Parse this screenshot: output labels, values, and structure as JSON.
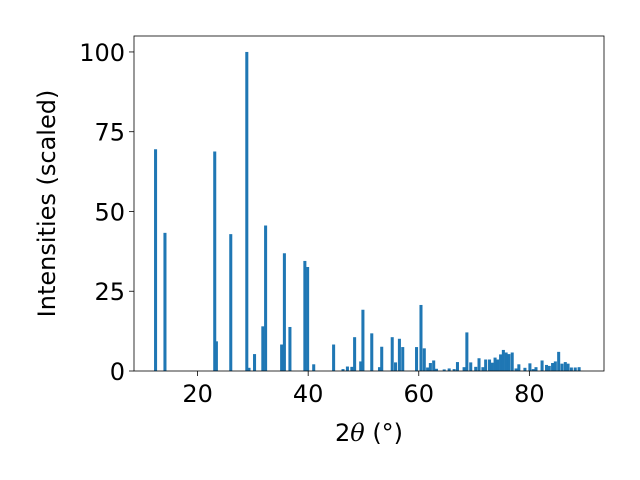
{
  "chart_data": {
    "type": "bar",
    "xlabel_parts": {
      "prefix": "2",
      "theta": "θ",
      "unit": " (°)"
    },
    "ylabel": "Intensities (scaled)",
    "xlim": [
      8.5,
      93.5
    ],
    "ylim": [
      0,
      105
    ],
    "bar_width_deg": 0.55,
    "x_ticks": [
      20,
      40,
      60,
      80
    ],
    "x_tick_labels": [
      "20",
      "40",
      "60",
      "80"
    ],
    "y_ticks": [
      0,
      25,
      50,
      75,
      100
    ],
    "y_tick_labels": [
      "0",
      "25",
      "50",
      "75",
      "100"
    ],
    "grid": false,
    "legend": "none",
    "bar_color": "#1f77b4",
    "x": [
      12.4,
      14.1,
      23.1,
      23.4,
      26.0,
      28.9,
      29.3,
      30.3,
      31.8,
      32.3,
      35.2,
      35.7,
      36.7,
      39.4,
      39.9,
      41.0,
      44.6,
      46.3,
      47.1,
      47.9,
      48.4,
      49.5,
      49.9,
      51.5,
      52.9,
      53.3,
      55.2,
      55.8,
      56.5,
      57.1,
      59.6,
      60.4,
      61.0,
      61.6,
      62.1,
      62.7,
      63.2,
      64.6,
      65.5,
      66.4,
      67.0,
      68.2,
      68.7,
      69.4,
      70.3,
      70.9,
      71.6,
      72.1,
      72.8,
      73.3,
      73.8,
      74.3,
      74.8,
      75.3,
      75.8,
      76.3,
      76.9,
      77.6,
      78.1,
      79.2,
      80.1,
      80.7,
      81.2,
      82.3,
      83.1,
      83.6,
      84.2,
      84.7,
      85.3,
      85.9,
      86.5,
      87.0,
      87.6,
      88.3,
      89.0
    ],
    "values": [
      69.5,
      43.3,
      68.8,
      9.3,
      42.9,
      100.0,
      1.0,
      5.3,
      14.0,
      45.6,
      8.3,
      36.9,
      13.8,
      34.5,
      32.6,
      2.1,
      8.3,
      0.6,
      1.4,
      1.3,
      10.6,
      3.0,
      19.2,
      11.8,
      1.2,
      7.6,
      10.6,
      2.7,
      10.1,
      7.5,
      7.5,
      20.7,
      7.1,
      1.1,
      2.5,
      3.3,
      0.7,
      0.5,
      0.8,
      0.6,
      2.8,
      1.2,
      12.1,
      2.7,
      1.3,
      4.0,
      1.2,
      3.6,
      3.6,
      2.6,
      4.2,
      3.6,
      5.2,
      6.6,
      5.8,
      5.3,
      5.8,
      0.8,
      2.1,
      1.0,
      2.4,
      0.6,
      1.2,
      3.3,
      1.9,
      1.6,
      2.5,
      3.0,
      6.0,
      2.3,
      2.8,
      2.3,
      1.1,
      1.1,
      1.2
    ]
  }
}
